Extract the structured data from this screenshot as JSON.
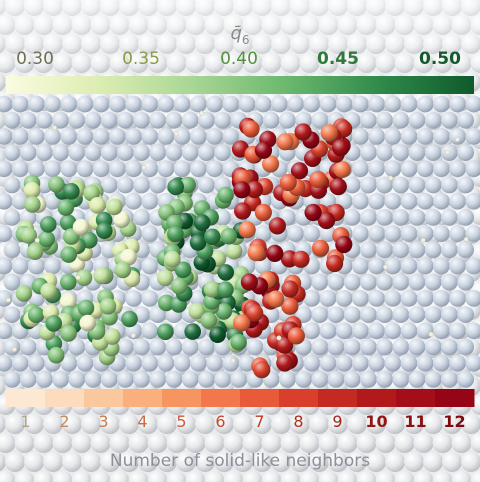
{
  "top_colorbar": {
    "title": "q̄",
    "title_subscript": "6",
    "ticks": [
      "0.30",
      "0.35",
      "0.40",
      "0.45",
      "0.50"
    ],
    "tick_colors": [
      "#6f6f55",
      "#8c9a45",
      "#55903f",
      "#2f7a3a",
      "#145a2e"
    ],
    "gradient_colors": [
      "#fbfbe0",
      "#dcedb2",
      "#a8d694",
      "#6bb86e",
      "#2f8a4a",
      "#0f5a2c"
    ]
  },
  "bottom_colorbar": {
    "title": "Number of solid-like neighbors",
    "ticks": [
      "1",
      "2",
      "3",
      "4",
      "5",
      "6",
      "7",
      "8",
      "9",
      "10",
      "11",
      "12"
    ],
    "colors": [
      "#fde8d4",
      "#fcdcbd",
      "#fbc89d",
      "#f9b07c",
      "#f79561",
      "#f2774a",
      "#e85a38",
      "#d93f2b",
      "#c42a21",
      "#b2191b",
      "#a30e18",
      "#950515"
    ],
    "tick_label_colors": [
      "#b0a38c",
      "#c08a5e",
      "#c77d52",
      "#cc6b43",
      "#d05a37",
      "#c8482d",
      "#c23b24",
      "#b32c1d",
      "#a52218",
      "#951712",
      "#8a0f10",
      "#7f0a0c"
    ]
  },
  "chart_data": [
    {
      "type": "heatmap",
      "title": "q̄6",
      "colorbar_ticks": [
        0.3,
        0.35,
        0.4,
        0.45,
        0.5
      ],
      "colorbar_range": [
        0.28,
        0.52
      ]
    },
    {
      "type": "heatmap",
      "title": "Number of solid-like neighbors",
      "colorbar_ticks": [
        1,
        2,
        3,
        4,
        5,
        6,
        7,
        8,
        9,
        10,
        11,
        12
      ],
      "colorbar_range": [
        1,
        12
      ]
    }
  ]
}
